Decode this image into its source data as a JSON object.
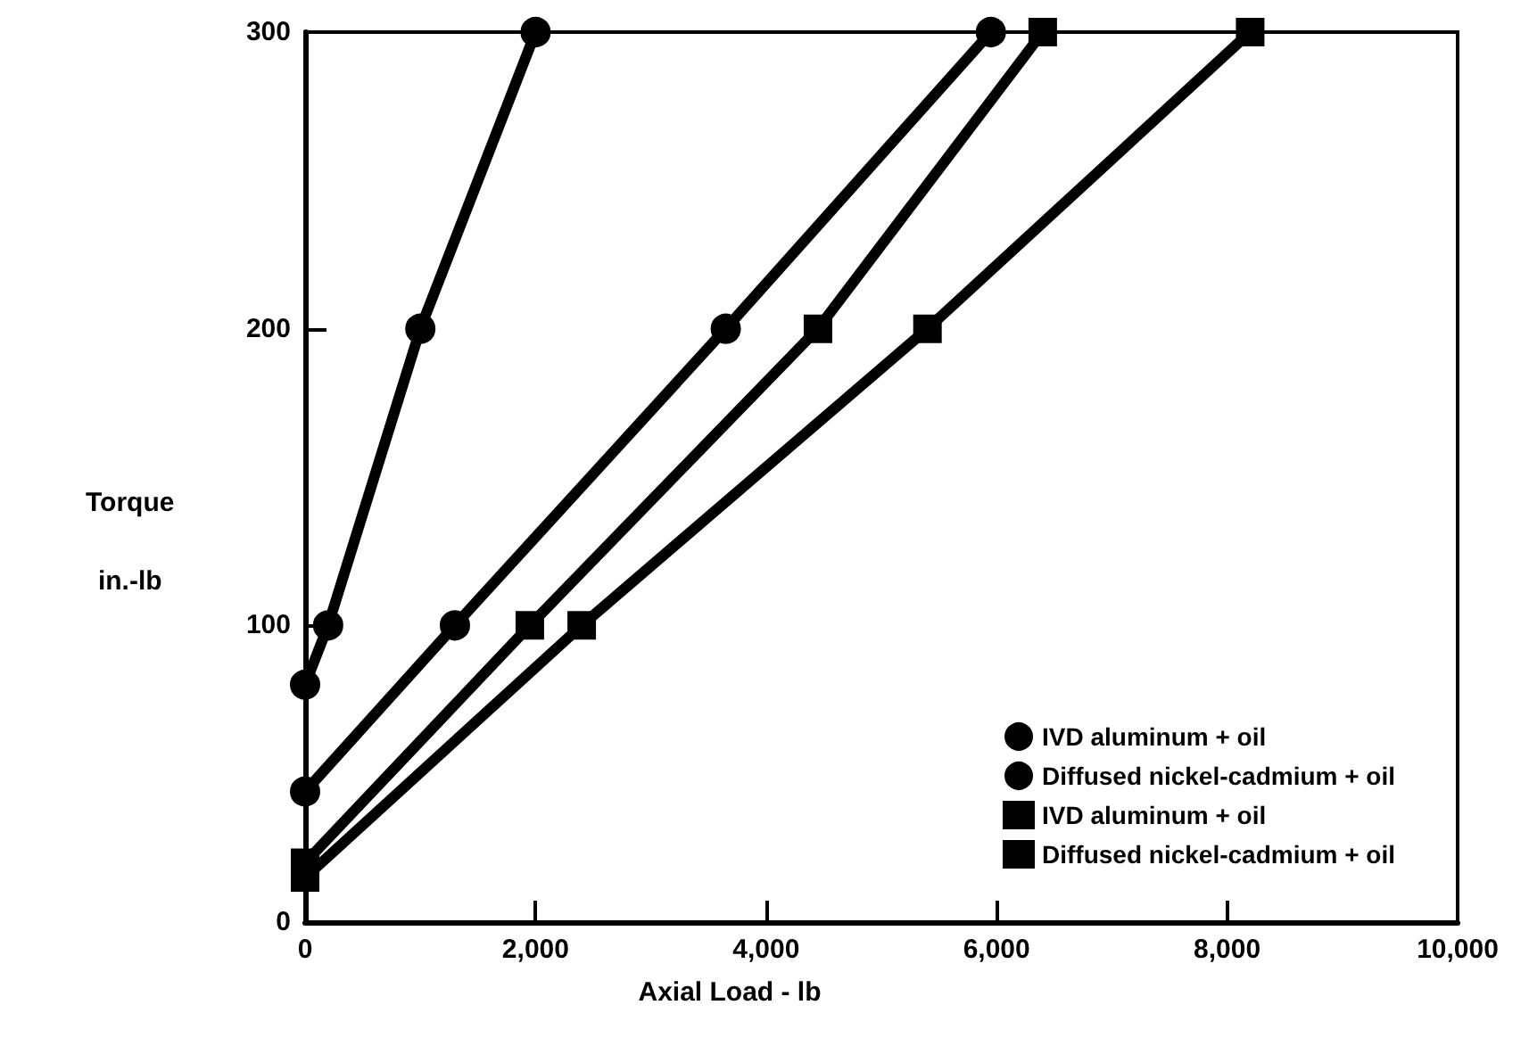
{
  "chart_data": {
    "type": "line",
    "xlabel": "Axial Load - lb",
    "ylabel": "Torque\nin.-lb",
    "xlim": [
      0,
      10000
    ],
    "xticks": [
      {
        "value": 0,
        "label": "0"
      },
      {
        "value": 2000,
        "label": "2,000"
      },
      {
        "value": 4000,
        "label": "4,000"
      },
      {
        "value": 6000,
        "label": "6,000"
      },
      {
        "value": 8000,
        "label": "8,000"
      },
      {
        "value": 10000,
        "label": "10,000"
      }
    ],
    "ylim": [
      0,
      300
    ],
    "yticks": [
      0,
      100,
      200,
      300
    ],
    "grid": false,
    "legend": "bottom right",
    "line_style": "solid",
    "series": [
      {
        "name": "IVD aluminum + oil",
        "color": "#000000",
        "marker": "circle",
        "x": [
          0,
          200,
          1000,
          2000
        ],
        "values": [
          80,
          100,
          200,
          300
        ]
      },
      {
        "name": "Diffused nickel-cadmium + oil",
        "color": "#000000",
        "marker": "circle",
        "x": [
          0,
          1300,
          3650,
          5950
        ],
        "values": [
          44,
          100,
          200,
          300
        ]
      },
      {
        "name": "IVD aluminum + oil",
        "color": "#000000",
        "marker": "square",
        "x": [
          0,
          1950,
          4450,
          6400
        ],
        "values": [
          20,
          100,
          200,
          300
        ]
      },
      {
        "name": "Diffused nickel-cadmium + oil",
        "color": "#000000",
        "marker": "square",
        "x": [
          0,
          2400,
          5400,
          8200
        ],
        "values": [
          15,
          100,
          200,
          300
        ]
      }
    ]
  }
}
